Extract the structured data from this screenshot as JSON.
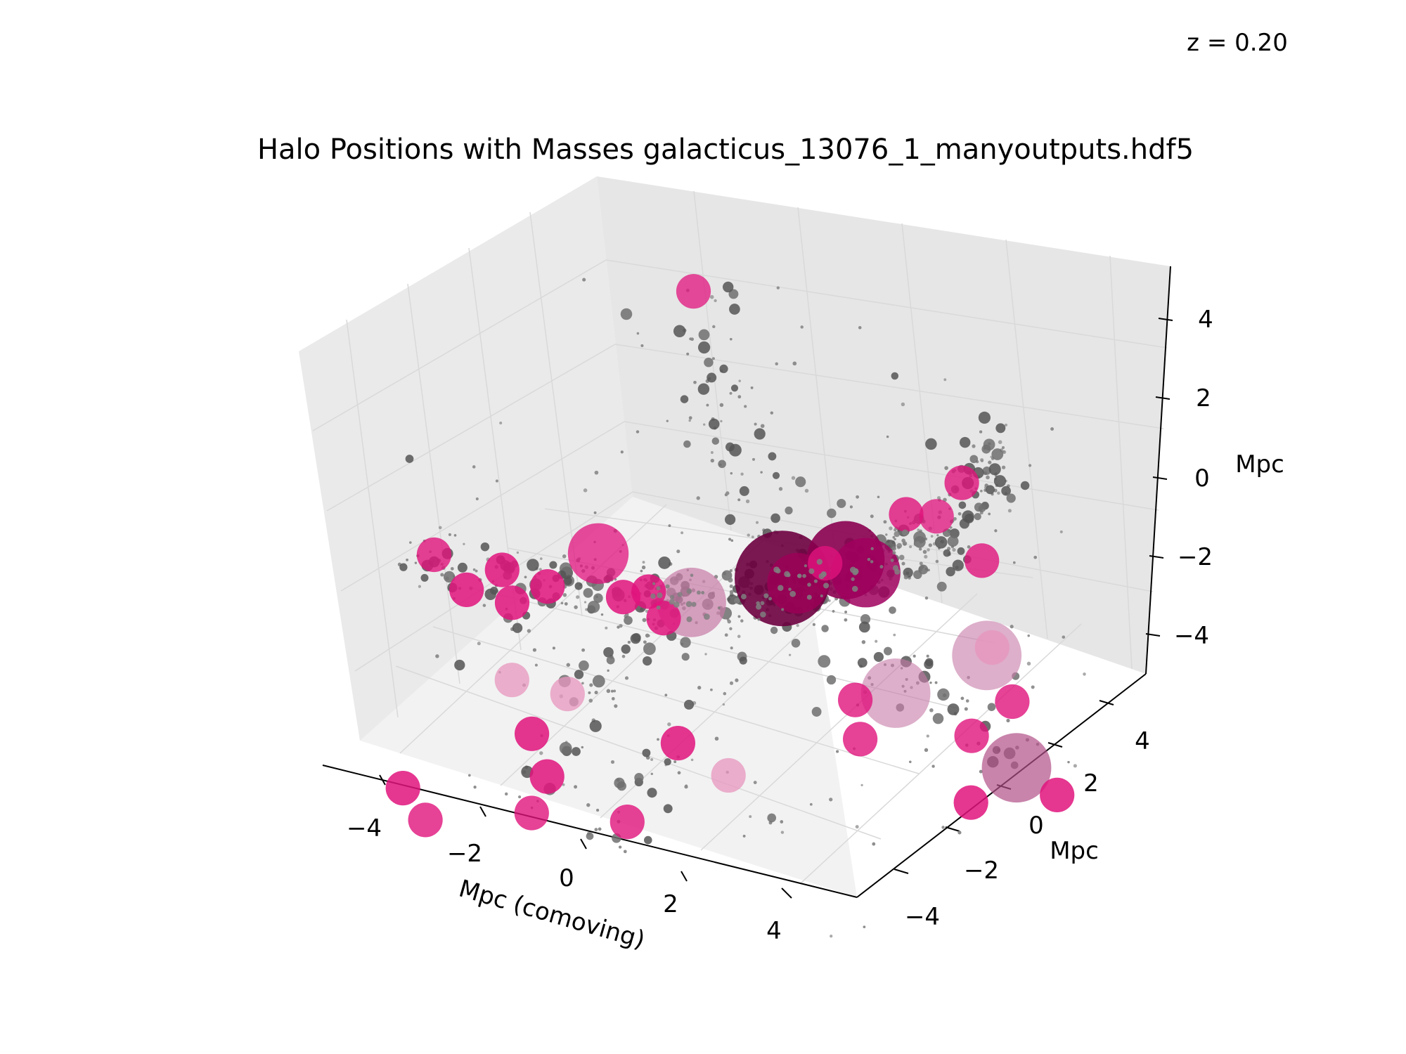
{
  "chart_data": {
    "type": "scatter",
    "projection": "3d",
    "title": "Halo Positions with Masses galacticus_13076_1_manyoutputs.hdf5",
    "annotation": "z = 0.20",
    "xlabel": "Mpc (comoving)",
    "ylabel": "Mpc",
    "zlabel": "Mpc",
    "xlim": [
      -5,
      5
    ],
    "ylim": [
      -5,
      5
    ],
    "zlim": [
      -5,
      5
    ],
    "x_ticks": [
      "−4",
      "−2",
      "0",
      "2",
      "4"
    ],
    "y_ticks": [
      "−4",
      "−2",
      "0",
      "2",
      "4"
    ],
    "z_ticks": [
      "−4",
      "−2",
      "0",
      "2",
      "4"
    ],
    "grid": true,
    "colors": {
      "background_pane": "#f2f2f2",
      "grid": "#e4e4e4",
      "point_small": "#8c8c8c",
      "point_medium": "#555555",
      "halo_magenta": "#e0137c",
      "halo_dark": "#7a0045",
      "halo_faded": "#e796bd"
    },
    "series": [
      {
        "role": "massive halos",
        "points": [
          {
            "x": 0.5,
            "y": 0.5,
            "z": 0.2,
            "mass": 10,
            "color": "#6d0040",
            "opacity": 0.9
          },
          {
            "x": 1.5,
            "y": 1.0,
            "z": 0.8,
            "mass": 8,
            "color": "#8a0050",
            "opacity": 0.9
          },
          {
            "x": 1.8,
            "y": 1.2,
            "z": 0.5,
            "mass": 7,
            "color": "#a0005e",
            "opacity": 0.85
          },
          {
            "x": -0.8,
            "y": -0.5,
            "z": -0.4,
            "mass": 7,
            "color": "#c77aa6",
            "opacity": 0.7
          },
          {
            "x": -2.5,
            "y": -0.8,
            "z": 0.3,
            "mass": 6,
            "color": "#e0137c",
            "opacity": 0.75
          },
          {
            "x": 2.6,
            "y": 0.8,
            "z": -2.0,
            "mass": 7,
            "color": "#c77aa6",
            "opacity": 0.6
          },
          {
            "x": 3.8,
            "y": 2.0,
            "z": -1.2,
            "mass": 7,
            "color": "#c77aa6",
            "opacity": 0.6
          },
          {
            "x": 4.8,
            "y": 1.2,
            "z": -3.2,
            "mass": 7,
            "color": "#b05088",
            "opacity": 0.7
          },
          {
            "x": 0.8,
            "y": 0.5,
            "z": 0.2,
            "mass": 6,
            "color": "#9e0057",
            "opacity": 0.8
          }
        ]
      },
      {
        "role": "intermediate halos",
        "points": [
          {
            "x": -2.8,
            "y": 3.5,
            "z": 4.5,
            "mass": 3,
            "color": "#e0137c",
            "opacity": 0.75
          },
          {
            "x": 3.2,
            "y": 2.2,
            "z": 2.8,
            "mass": 3,
            "color": "#e0137c",
            "opacity": 0.8
          },
          {
            "x": 2.4,
            "y": 1.6,
            "z": 2.0,
            "mass": 3,
            "color": "#e0137c",
            "opacity": 0.8
          },
          {
            "x": 2.8,
            "y": 2.0,
            "z": 1.9,
            "mass": 3,
            "color": "#e0137c",
            "opacity": 0.75
          },
          {
            "x": -4.9,
            "y": -2.5,
            "z": 0.2,
            "mass": 3,
            "color": "#e0137c",
            "opacity": 0.8
          },
          {
            "x": -4.1,
            "y": -2.8,
            "z": -0.2,
            "mass": 3,
            "color": "#e0137c",
            "opacity": 0.85
          },
          {
            "x": -3.8,
            "y": -2.0,
            "z": 0.0,
            "mass": 3,
            "color": "#e0137c",
            "opacity": 0.85
          },
          {
            "x": -3.5,
            "y": -2.2,
            "z": -0.6,
            "mass": 3,
            "color": "#e0137c",
            "opacity": 0.85
          },
          {
            "x": -3.0,
            "y": -1.8,
            "z": -0.2,
            "mass": 3,
            "color": "#e0137c",
            "opacity": 0.85
          },
          {
            "x": -1.8,
            "y": -1.2,
            "z": -0.3,
            "mass": 3,
            "color": "#e0137c",
            "opacity": 0.85
          },
          {
            "x": -3.4,
            "y": -2.4,
            "z": -2.4,
            "mass": 3,
            "color": "#e796bd",
            "opacity": 0.75
          },
          {
            "x": -2.5,
            "y": -2.0,
            "z": -2.6,
            "mass": 3,
            "color": "#e796bd",
            "opacity": 0.75
          },
          {
            "x": -2.8,
            "y": -2.8,
            "z": -3.3,
            "mass": 3,
            "color": "#e0137c",
            "opacity": 0.85
          },
          {
            "x": -2.6,
            "y": -2.6,
            "z": -4.4,
            "mass": 3,
            "color": "#e0137c",
            "opacity": 0.85
          },
          {
            "x": -2.6,
            "y": -3.2,
            "z": -5.0,
            "mass": 3,
            "color": "#e0137c",
            "opacity": 0.8
          },
          {
            "x": -4.6,
            "y": -4.3,
            "z": -4.6,
            "mass": 3,
            "color": "#e0137c",
            "opacity": 0.85
          },
          {
            "x": -4.0,
            "y": -4.6,
            "z": -5.0,
            "mass": 3,
            "color": "#e0137c",
            "opacity": 0.8
          },
          {
            "x": -0.2,
            "y": -2.2,
            "z": -2.8,
            "mass": 3,
            "color": "#e0137c",
            "opacity": 0.85
          },
          {
            "x": 0.6,
            "y": -1.8,
            "z": -3.5,
            "mass": 3,
            "color": "#e796bd",
            "opacity": 0.75
          },
          {
            "x": -0.8,
            "y": -3.0,
            "z": -4.6,
            "mass": 3,
            "color": "#e0137c",
            "opacity": 0.8
          },
          {
            "x": 2.0,
            "y": 0.4,
            "z": -2.2,
            "mass": 3,
            "color": "#e0137c",
            "opacity": 0.8
          },
          {
            "x": 2.2,
            "y": 0.2,
            "z": -3.0,
            "mass": 3,
            "color": "#e0137c",
            "opacity": 0.8
          },
          {
            "x": 3.6,
            "y": 1.8,
            "z": -3.2,
            "mass": 3,
            "color": "#e0137c",
            "opacity": 0.8
          },
          {
            "x": 4.0,
            "y": 2.6,
            "z": -2.6,
            "mass": 3,
            "color": "#e0137c",
            "opacity": 0.8
          },
          {
            "x": 3.6,
            "y": 2.6,
            "z": -1.4,
            "mass": 3,
            "color": "#e796bd",
            "opacity": 0.8
          },
          {
            "x": 4.2,
            "y": 0.6,
            "z": -4.0,
            "mass": 3,
            "color": "#e0137c",
            "opacity": 0.85
          },
          {
            "x": 5.3,
            "y": 1.8,
            "z": -4.0,
            "mass": 3,
            "color": "#e0137c",
            "opacity": 0.85
          },
          {
            "x": 3.6,
            "y": 2.2,
            "z": 1.0,
            "mass": 3,
            "color": "#e0137c",
            "opacity": 0.8
          },
          {
            "x": 1.4,
            "y": 0.4,
            "z": 1.0,
            "mass": 3,
            "color": "#e0137c",
            "opacity": 0.8
          },
          {
            "x": -1.6,
            "y": -0.6,
            "z": -0.4,
            "mass": 3,
            "color": "#e0137c",
            "opacity": 0.85
          },
          {
            "x": -1.2,
            "y": -0.8,
            "z": -0.8,
            "mass": 3,
            "color": "#e0137c",
            "opacity": 0.85
          }
        ]
      }
    ]
  }
}
